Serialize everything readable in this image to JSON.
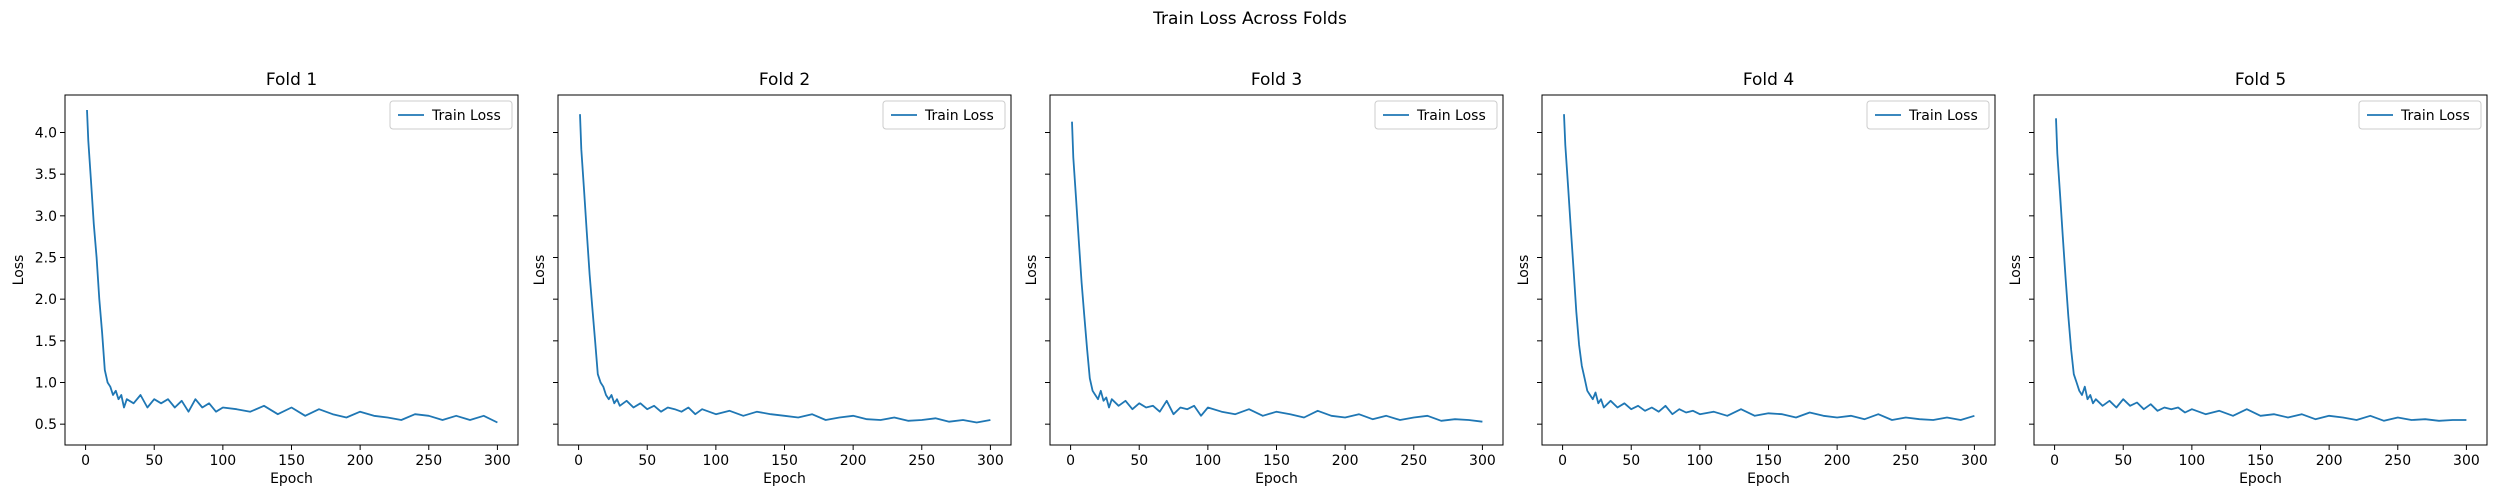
{
  "figure": {
    "title": "Train Loss Across Folds",
    "line_color": "#1f77b4"
  },
  "chart_data": [
    {
      "type": "line",
      "title": "Fold 1",
      "xlabel": "Epoch",
      "ylabel": "Loss",
      "xlim": [
        -15,
        315
      ],
      "ylim": [
        0.25,
        4.45
      ],
      "xticks": [
        0,
        50,
        100,
        150,
        200,
        250,
        300
      ],
      "yticks": [
        0.5,
        1.0,
        1.5,
        2.0,
        2.5,
        3.0,
        3.5,
        4.0
      ],
      "ytick_labels_visible": true,
      "legend": "upper right",
      "series": [
        {
          "name": "Train Loss",
          "color": "#1f77b4",
          "x": [
            1,
            2,
            4,
            6,
            8,
            10,
            12,
            14,
            16,
            18,
            20,
            22,
            24,
            26,
            28,
            30,
            35,
            40,
            45,
            50,
            55,
            60,
            65,
            70,
            75,
            80,
            85,
            90,
            95,
            100,
            110,
            120,
            130,
            140,
            150,
            160,
            170,
            180,
            190,
            200,
            210,
            220,
            230,
            240,
            250,
            260,
            270,
            280,
            290,
            300
          ],
          "y": [
            4.27,
            3.9,
            3.4,
            2.9,
            2.5,
            2.0,
            1.6,
            1.15,
            1.0,
            0.95,
            0.85,
            0.9,
            0.8,
            0.85,
            0.7,
            0.8,
            0.75,
            0.85,
            0.7,
            0.8,
            0.75,
            0.8,
            0.7,
            0.78,
            0.65,
            0.8,
            0.7,
            0.75,
            0.65,
            0.7,
            0.68,
            0.65,
            0.72,
            0.62,
            0.7,
            0.6,
            0.68,
            0.62,
            0.58,
            0.65,
            0.6,
            0.58,
            0.55,
            0.62,
            0.6,
            0.55,
            0.6,
            0.55,
            0.6,
            0.52
          ]
        }
      ]
    },
    {
      "type": "line",
      "title": "Fold 2",
      "xlabel": "Epoch",
      "ylabel": "Loss",
      "xlim": [
        -15,
        315
      ],
      "ylim": [
        0.25,
        4.45
      ],
      "xticks": [
        0,
        50,
        100,
        150,
        200,
        250,
        300
      ],
      "yticks": [
        0.5,
        1.0,
        1.5,
        2.0,
        2.5,
        3.0,
        3.5,
        4.0
      ],
      "ytick_labels_visible": false,
      "legend": "upper right",
      "series": [
        {
          "name": "Train Loss",
          "color": "#1f77b4",
          "x": [
            1,
            2,
            4,
            6,
            8,
            10,
            12,
            14,
            16,
            18,
            20,
            22,
            24,
            26,
            28,
            30,
            35,
            40,
            45,
            50,
            55,
            60,
            65,
            70,
            75,
            80,
            85,
            90,
            95,
            100,
            110,
            120,
            130,
            140,
            150,
            160,
            170,
            180,
            190,
            200,
            210,
            220,
            230,
            240,
            250,
            260,
            270,
            280,
            290,
            300
          ],
          "y": [
            4.22,
            3.8,
            3.3,
            2.8,
            2.3,
            1.9,
            1.5,
            1.1,
            1.0,
            0.95,
            0.85,
            0.8,
            0.85,
            0.75,
            0.8,
            0.72,
            0.78,
            0.7,
            0.75,
            0.68,
            0.72,
            0.65,
            0.7,
            0.68,
            0.65,
            0.7,
            0.62,
            0.68,
            0.65,
            0.62,
            0.66,
            0.6,
            0.65,
            0.62,
            0.6,
            0.58,
            0.62,
            0.55,
            0.58,
            0.6,
            0.56,
            0.55,
            0.58,
            0.54,
            0.55,
            0.57,
            0.53,
            0.55,
            0.52,
            0.55
          ]
        }
      ]
    },
    {
      "type": "line",
      "title": "Fold 3",
      "xlabel": "Epoch",
      "ylabel": "Loss",
      "xlim": [
        -15,
        315
      ],
      "ylim": [
        0.25,
        4.45
      ],
      "xticks": [
        0,
        50,
        100,
        150,
        200,
        250,
        300
      ],
      "yticks": [
        0.5,
        1.0,
        1.5,
        2.0,
        2.5,
        3.0,
        3.5,
        4.0
      ],
      "ytick_labels_visible": false,
      "legend": "upper right",
      "series": [
        {
          "name": "Train Loss",
          "color": "#1f77b4",
          "x": [
            1,
            2,
            4,
            6,
            8,
            10,
            12,
            14,
            16,
            18,
            20,
            22,
            24,
            26,
            28,
            30,
            35,
            40,
            45,
            50,
            55,
            60,
            65,
            70,
            75,
            80,
            85,
            90,
            95,
            100,
            110,
            120,
            130,
            140,
            150,
            160,
            170,
            180,
            190,
            200,
            210,
            220,
            230,
            240,
            250,
            260,
            270,
            280,
            290,
            300
          ],
          "y": [
            4.13,
            3.7,
            3.2,
            2.7,
            2.2,
            1.8,
            1.4,
            1.05,
            0.9,
            0.85,
            0.8,
            0.9,
            0.78,
            0.82,
            0.7,
            0.8,
            0.72,
            0.78,
            0.68,
            0.75,
            0.7,
            0.72,
            0.65,
            0.78,
            0.62,
            0.7,
            0.68,
            0.72,
            0.6,
            0.7,
            0.65,
            0.62,
            0.68,
            0.6,
            0.65,
            0.62,
            0.58,
            0.66,
            0.6,
            0.58,
            0.62,
            0.56,
            0.6,
            0.55,
            0.58,
            0.6,
            0.54,
            0.56,
            0.55,
            0.53
          ]
        }
      ]
    },
    {
      "type": "line",
      "title": "Fold 4",
      "xlabel": "Epoch",
      "ylabel": "Loss",
      "xlim": [
        -15,
        315
      ],
      "ylim": [
        0.25,
        4.45
      ],
      "xticks": [
        0,
        50,
        100,
        150,
        200,
        250,
        300
      ],
      "yticks": [
        0.5,
        1.0,
        1.5,
        2.0,
        2.5,
        3.0,
        3.5,
        4.0
      ],
      "ytick_labels_visible": false,
      "legend": "upper right",
      "series": [
        {
          "name": "Train Loss",
          "color": "#1f77b4",
          "x": [
            1,
            2,
            4,
            6,
            8,
            10,
            12,
            14,
            16,
            18,
            20,
            22,
            24,
            26,
            28,
            30,
            35,
            40,
            45,
            50,
            55,
            60,
            65,
            70,
            75,
            80,
            85,
            90,
            95,
            100,
            110,
            120,
            130,
            140,
            150,
            160,
            170,
            180,
            190,
            200,
            210,
            220,
            230,
            240,
            250,
            260,
            270,
            280,
            290,
            300
          ],
          "y": [
            4.22,
            3.85,
            3.35,
            2.85,
            2.35,
            1.85,
            1.45,
            1.2,
            1.05,
            0.9,
            0.85,
            0.8,
            0.88,
            0.75,
            0.8,
            0.7,
            0.78,
            0.7,
            0.75,
            0.68,
            0.72,
            0.66,
            0.7,
            0.65,
            0.72,
            0.62,
            0.68,
            0.64,
            0.66,
            0.62,
            0.65,
            0.6,
            0.68,
            0.6,
            0.63,
            0.62,
            0.58,
            0.64,
            0.6,
            0.58,
            0.6,
            0.56,
            0.62,
            0.55,
            0.58,
            0.56,
            0.55,
            0.58,
            0.55,
            0.6
          ]
        }
      ]
    },
    {
      "type": "line",
      "title": "Fold 5",
      "xlabel": "Epoch",
      "ylabel": "Loss",
      "xlim": [
        -15,
        315
      ],
      "ylim": [
        0.25,
        4.45
      ],
      "xticks": [
        0,
        50,
        100,
        150,
        200,
        250,
        300
      ],
      "yticks": [
        0.5,
        1.0,
        1.5,
        2.0,
        2.5,
        3.0,
        3.5,
        4.0
      ],
      "ytick_labels_visible": false,
      "legend": "upper right",
      "series": [
        {
          "name": "Train Loss",
          "color": "#1f77b4",
          "x": [
            1,
            2,
            4,
            6,
            8,
            10,
            12,
            14,
            16,
            18,
            20,
            22,
            24,
            26,
            28,
            30,
            35,
            40,
            45,
            50,
            55,
            60,
            65,
            70,
            75,
            80,
            85,
            90,
            95,
            100,
            110,
            120,
            130,
            140,
            150,
            160,
            170,
            180,
            190,
            200,
            210,
            220,
            230,
            240,
            250,
            260,
            270,
            280,
            290,
            300
          ],
          "y": [
            4.17,
            3.75,
            3.25,
            2.75,
            2.25,
            1.8,
            1.4,
            1.1,
            1.0,
            0.9,
            0.85,
            0.95,
            0.8,
            0.85,
            0.75,
            0.8,
            0.72,
            0.78,
            0.7,
            0.8,
            0.72,
            0.76,
            0.68,
            0.74,
            0.66,
            0.7,
            0.68,
            0.7,
            0.64,
            0.68,
            0.62,
            0.66,
            0.6,
            0.68,
            0.6,
            0.62,
            0.58,
            0.62,
            0.56,
            0.6,
            0.58,
            0.55,
            0.6,
            0.54,
            0.58,
            0.55,
            0.56,
            0.54,
            0.55,
            0.55
          ]
        }
      ]
    }
  ]
}
